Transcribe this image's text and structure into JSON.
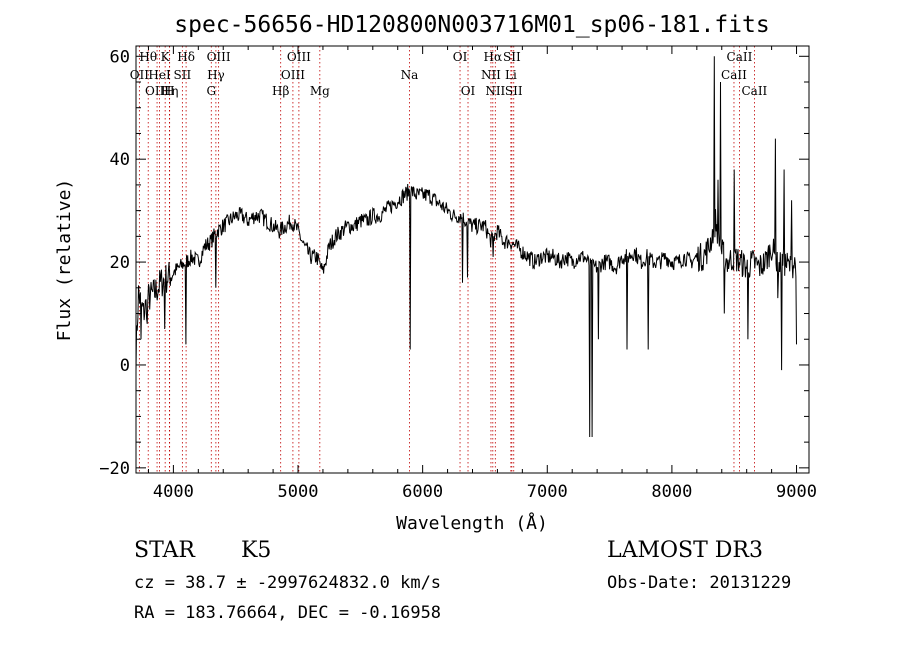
{
  "chart_data": {
    "type": "line",
    "title": "spec-56656-HD120800N003716M01_sp06-181.fits",
    "xlabel": "Wavelength (Å)",
    "ylabel": "Flux (relative)",
    "xlim": [
      3700,
      9100
    ],
    "ylim": [
      -21,
      62
    ],
    "xticks": [
      4000,
      5000,
      6000,
      7000,
      8000,
      9000
    ],
    "yticks": [
      -20,
      0,
      20,
      40,
      60
    ],
    "grid": false,
    "line_color": "#000000",
    "marker_color": "#c00000",
    "spectrum_anchors": [
      [
        3700,
        2
      ],
      [
        3720,
        14
      ],
      [
        3760,
        10
      ],
      [
        3800,
        13
      ],
      [
        3850,
        14
      ],
      [
        3900,
        16
      ],
      [
        3950,
        17
      ],
      [
        4000,
        18
      ],
      [
        4050,
        19
      ],
      [
        4100,
        20
      ],
      [
        4150,
        21
      ],
      [
        4200,
        20
      ],
      [
        4250,
        23
      ],
      [
        4300,
        24
      ],
      [
        4350,
        26
      ],
      [
        4400,
        27
      ],
      [
        4450,
        28
      ],
      [
        4500,
        29
      ],
      [
        4550,
        29
      ],
      [
        4600,
        28
      ],
      [
        4650,
        29
      ],
      [
        4700,
        29
      ],
      [
        4750,
        28
      ],
      [
        4800,
        27
      ],
      [
        4850,
        26
      ],
      [
        4900,
        27
      ],
      [
        4950,
        28
      ],
      [
        5000,
        26
      ],
      [
        5050,
        23
      ],
      [
        5100,
        21
      ],
      [
        5150,
        21
      ],
      [
        5200,
        18
      ],
      [
        5250,
        23
      ],
      [
        5300,
        25
      ],
      [
        5350,
        26
      ],
      [
        5400,
        27
      ],
      [
        5450,
        27
      ],
      [
        5500,
        28
      ],
      [
        5550,
        28
      ],
      [
        5600,
        29
      ],
      [
        5650,
        29
      ],
      [
        5700,
        30
      ],
      [
        5750,
        31
      ],
      [
        5800,
        32
      ],
      [
        5850,
        33
      ],
      [
        5900,
        34
      ],
      [
        5950,
        33
      ],
      [
        6000,
        33
      ],
      [
        6050,
        33
      ],
      [
        6100,
        32
      ],
      [
        6150,
        31
      ],
      [
        6200,
        30
      ],
      [
        6250,
        29
      ],
      [
        6300,
        29
      ],
      [
        6350,
        28
      ],
      [
        6400,
        27
      ],
      [
        6450,
        27
      ],
      [
        6500,
        27
      ],
      [
        6550,
        24
      ],
      [
        6600,
        26
      ],
      [
        6650,
        24
      ],
      [
        6700,
        24
      ],
      [
        6750,
        23
      ],
      [
        6800,
        22
      ],
      [
        6850,
        21
      ],
      [
        6900,
        20
      ],
      [
        6950,
        21
      ],
      [
        7000,
        21
      ],
      [
        7050,
        21
      ],
      [
        7100,
        20
      ],
      [
        7150,
        21
      ],
      [
        7200,
        20
      ],
      [
        7250,
        21
      ],
      [
        7300,
        21
      ],
      [
        7350,
        19
      ],
      [
        7400,
        19
      ],
      [
        7450,
        20
      ],
      [
        7500,
        20
      ],
      [
        7550,
        19
      ],
      [
        7600,
        21
      ],
      [
        7650,
        21
      ],
      [
        7700,
        22
      ],
      [
        7750,
        20
      ],
      [
        7800,
        21
      ],
      [
        7850,
        20
      ],
      [
        7900,
        20
      ],
      [
        7950,
        21
      ],
      [
        8000,
        20
      ],
      [
        8050,
        20
      ],
      [
        8100,
        21
      ],
      [
        8150,
        20
      ],
      [
        8200,
        21
      ],
      [
        8250,
        21
      ],
      [
        8300,
        23
      ],
      [
        8350,
        28
      ],
      [
        8400,
        22
      ],
      [
        8450,
        20
      ],
      [
        8500,
        21
      ],
      [
        8550,
        20
      ],
      [
        8600,
        19
      ],
      [
        8650,
        20
      ],
      [
        8700,
        19
      ],
      [
        8750,
        20
      ],
      [
        8800,
        23
      ],
      [
        8850,
        19
      ],
      [
        8900,
        20
      ],
      [
        8950,
        19
      ],
      [
        9000,
        20
      ]
    ],
    "spikes": [
      [
        3740,
        5
      ],
      [
        3790,
        8
      ],
      [
        3930,
        7
      ],
      [
        4100,
        4
      ],
      [
        4340,
        15
      ],
      [
        5900,
        3
      ],
      [
        6320,
        16
      ],
      [
        6360,
        17
      ],
      [
        6565,
        21
      ],
      [
        7340,
        -14
      ],
      [
        7360,
        -14
      ],
      [
        7410,
        5
      ],
      [
        7640,
        3
      ],
      [
        7810,
        3
      ],
      [
        8340,
        60
      ],
      [
        8370,
        36
      ],
      [
        8390,
        55
      ],
      [
        8420,
        10
      ],
      [
        8500,
        38
      ],
      [
        8610,
        5
      ],
      [
        8830,
        44
      ],
      [
        8850,
        13
      ],
      [
        8880,
        -1
      ],
      [
        8900,
        38
      ],
      [
        8960,
        32
      ],
      [
        9000,
        4
      ]
    ],
    "lines": [
      {
        "name": "OII",
        "wavelength": 3727,
        "row": 1
      },
      {
        "name": "Hθ",
        "wavelength": 3798,
        "row": 0
      },
      {
        "name": "OIII",
        "wavelength": 3869,
        "row": 2
      },
      {
        "name": "HeI",
        "wavelength": 3889,
        "row": 1
      },
      {
        "name": "K",
        "wavelength": 3934,
        "row": 0
      },
      {
        "name": "Hη",
        "wavelength": 3970,
        "row": 2
      },
      {
        "name": "H",
        "wavelength": 3968,
        "row": 2
      },
      {
        "name": "SII",
        "wavelength": 4072,
        "row": 1
      },
      {
        "name": "Hδ",
        "wavelength": 4102,
        "row": 0
      },
      {
        "name": "G",
        "wavelength": 4304,
        "row": 2
      },
      {
        "name": "Hγ",
        "wavelength": 4341,
        "row": 1
      },
      {
        "name": "OIII",
        "wavelength": 4363,
        "row": 0
      },
      {
        "name": "Hβ",
        "wavelength": 4861,
        "row": 2
      },
      {
        "name": "OIII",
        "wavelength": 4959,
        "row": 1
      },
      {
        "name": "OIII",
        "wavelength": 5007,
        "row": 0
      },
      {
        "name": "Mg",
        "wavelength": 5175,
        "row": 2
      },
      {
        "name": "Na",
        "wavelength": 5894,
        "row": 1
      },
      {
        "name": "OI",
        "wavelength": 6300,
        "row": 0
      },
      {
        "name": "OI",
        "wavelength": 6364,
        "row": 2
      },
      {
        "name": "NII",
        "wavelength": 6548,
        "row": 1
      },
      {
        "name": "Hα",
        "wavelength": 6563,
        "row": 0
      },
      {
        "name": "NII",
        "wavelength": 6583,
        "row": 2
      },
      {
        "name": "SII",
        "wavelength": 6716,
        "row": 0
      },
      {
        "name": "Li",
        "wavelength": 6708,
        "row": 1
      },
      {
        "name": "SII",
        "wavelength": 6731,
        "row": 2
      },
      {
        "name": "CaII",
        "wavelength": 8498,
        "row": 1
      },
      {
        "name": "CaII",
        "wavelength": 8542,
        "row": 0
      },
      {
        "name": "CaII",
        "wavelength": 8662,
        "row": 2
      }
    ]
  },
  "info": {
    "class": "STAR",
    "subclass": "K5",
    "survey": "LAMOST DR3",
    "cz": "cz = 38.7 ± -2997624832.0 km/s",
    "obs_date": "Obs-Date: 20131229",
    "coords": "RA = 183.76664, DEC =  -0.16958"
  }
}
